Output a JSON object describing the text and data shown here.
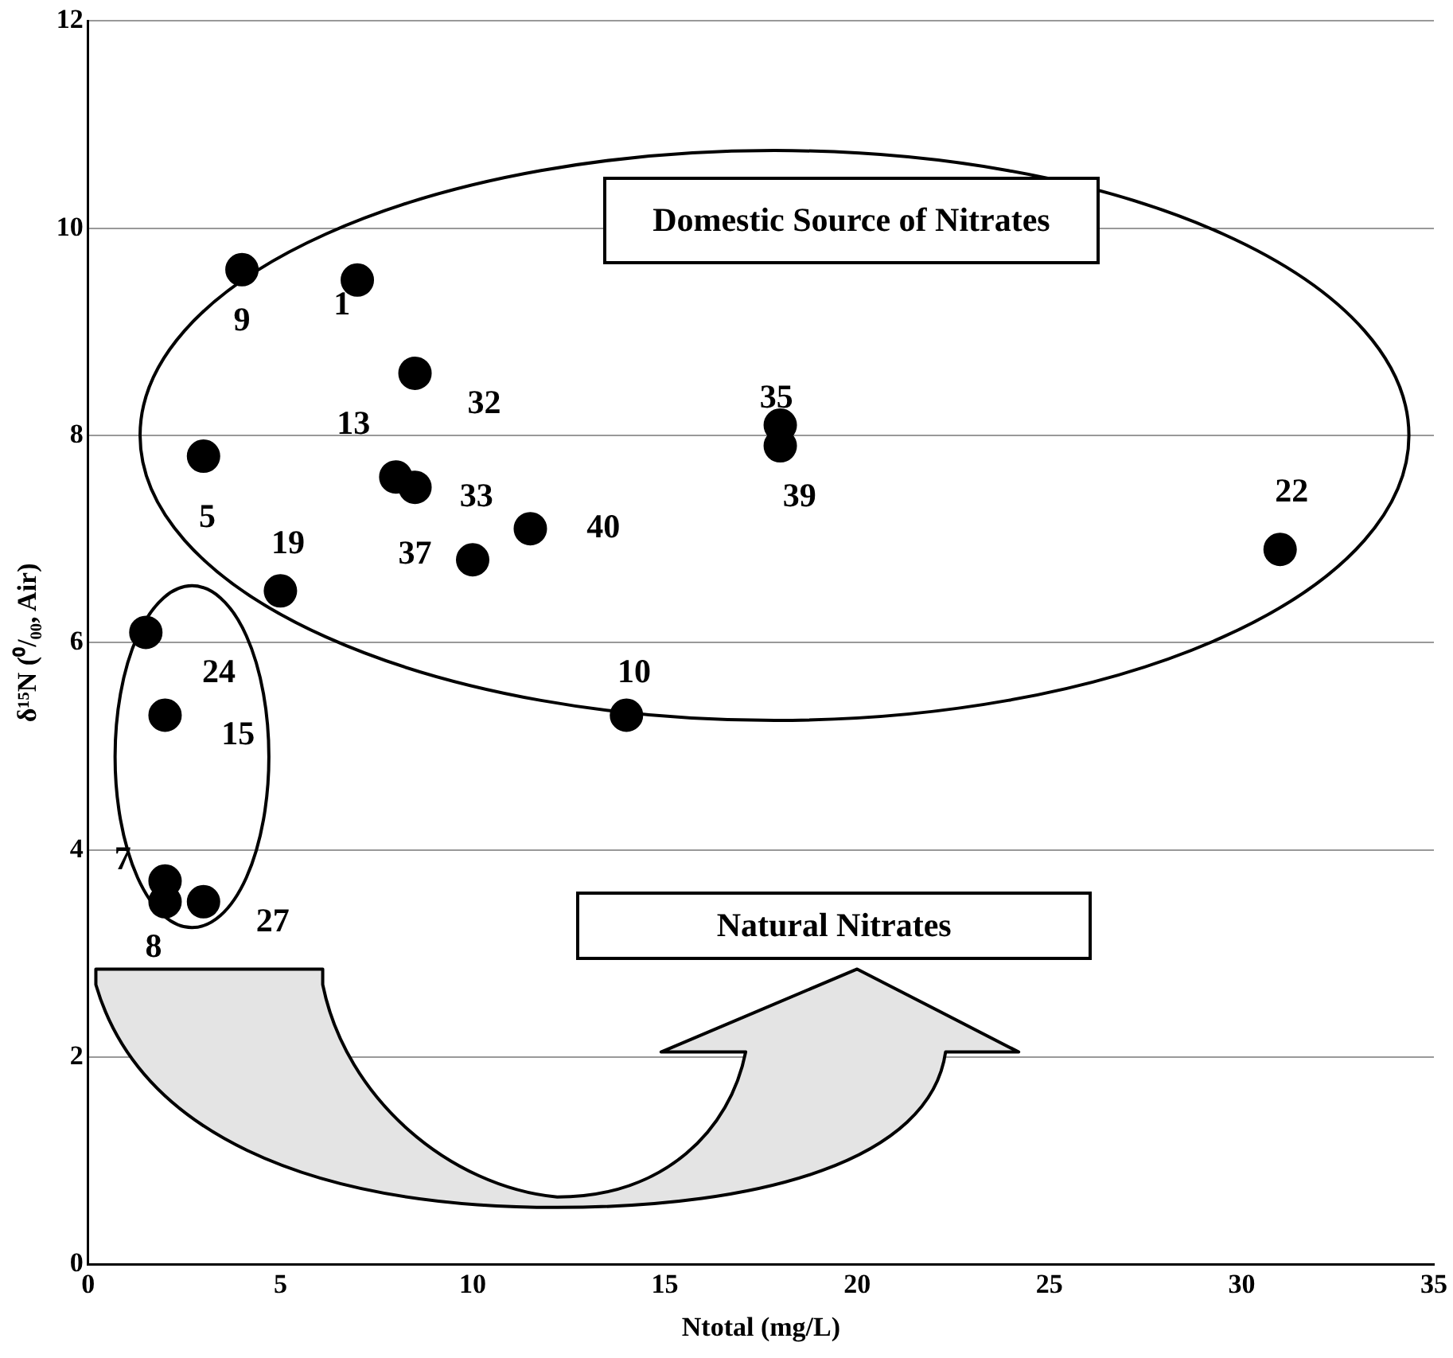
{
  "chart_data": {
    "type": "scatter",
    "xlabel": "Ntotal (mg/L)",
    "ylabel": "δ¹⁵N (⁰/₀₀, Air)",
    "series": [
      {
        "color": "#000000",
        "x": [
          4.0,
          7.0,
          8.5,
          3.0,
          8.0,
          8.5,
          10.0,
          11.5,
          5.0,
          18.0,
          18.0,
          31.0,
          14.0,
          1.5,
          2.0,
          2.0,
          2.0,
          3.0
        ],
        "values": [
          9.6,
          9.5,
          8.6,
          7.8,
          7.6,
          7.5,
          6.8,
          7.1,
          6.5,
          8.1,
          7.9,
          6.9,
          5.3,
          6.1,
          5.3,
          3.7,
          3.5,
          3.5
        ]
      }
    ],
    "xlim": [
      0,
      35
    ],
    "xticks": [
      0,
      5,
      10,
      15,
      20,
      25,
      30,
      35
    ],
    "ylim": [
      0,
      12
    ],
    "yticks": [
      0,
      2,
      4,
      6,
      8,
      10,
      12
    ],
    "grid": "y",
    "legend": false,
    "marker": "circle",
    "annotations": [
      {
        "text": "9",
        "x": 4.0,
        "y": 9.6
      },
      {
        "text": "1",
        "x": 7.0,
        "y": 9.5
      },
      {
        "text": "32",
        "x": 8.5,
        "y": 8.6
      },
      {
        "text": "13",
        "x": 8.0,
        "y": 7.6
      },
      {
        "text": "5",
        "x": 3.0,
        "y": 7.8
      },
      {
        "text": "33",
        "x": 8.5,
        "y": 7.5
      },
      {
        "text": "37",
        "x": 10.0,
        "y": 6.8
      },
      {
        "text": "40",
        "x": 11.5,
        "y": 7.1
      },
      {
        "text": "19",
        "x": 5.0,
        "y": 6.5
      },
      {
        "text": "35",
        "x": 18.0,
        "y": 8.1
      },
      {
        "text": "39",
        "x": 18.0,
        "y": 7.9
      },
      {
        "text": "22",
        "x": 31.0,
        "y": 6.9
      },
      {
        "text": "10",
        "x": 14.0,
        "y": 5.3
      },
      {
        "text": "24",
        "x": 1.5,
        "y": 6.1
      },
      {
        "text": "15",
        "x": 2.0,
        "y": 5.3
      },
      {
        "text": "7",
        "x": 2.0,
        "y": 3.7
      },
      {
        "text": "8",
        "x": 2.0,
        "y": 3.5
      },
      {
        "text": "27",
        "x": 3.0,
        "y": 3.5
      },
      "Domestic Source of Nitrates",
      "Natural Nitrates"
    ]
  }
}
